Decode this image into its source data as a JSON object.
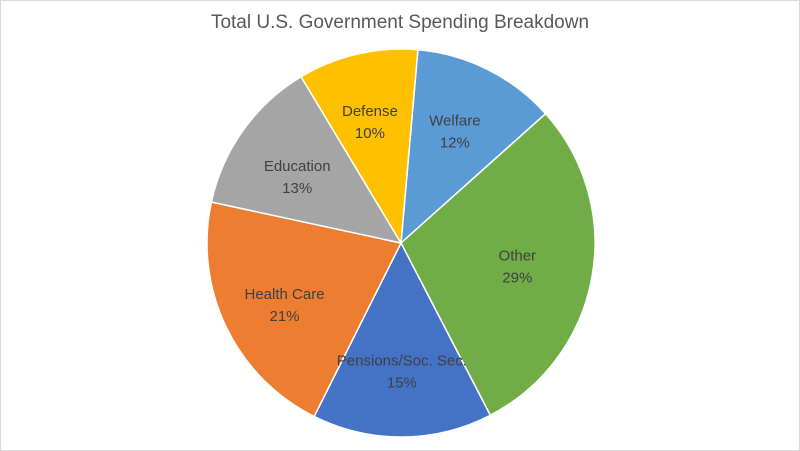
{
  "chart_data": {
    "type": "pie",
    "title": "Total U.S. Government Spending Breakdown",
    "slices": [
      {
        "label": "Welfare",
        "value": 12,
        "value_label": "12%",
        "color": "#5b9bd5"
      },
      {
        "label": "Other",
        "value": 29,
        "value_label": "29%",
        "color": "#70ad47"
      },
      {
        "label": "Pensions/Soc. Sec.",
        "value": 15,
        "value_label": "15%",
        "color": "#4472c4"
      },
      {
        "label": "Health Care",
        "value": 21,
        "value_label": "21%",
        "color": "#ed7d31"
      },
      {
        "label": "Education",
        "value": 13,
        "value_label": "13%",
        "color": "#a5a5a5"
      },
      {
        "label": "Defense",
        "value": 10,
        "value_label": "10%",
        "color": "#ffc000"
      }
    ],
    "start_angle_deg": 5,
    "direction": "clockwise",
    "legend": "none",
    "label_position": "inside",
    "label_color": "#404040"
  }
}
